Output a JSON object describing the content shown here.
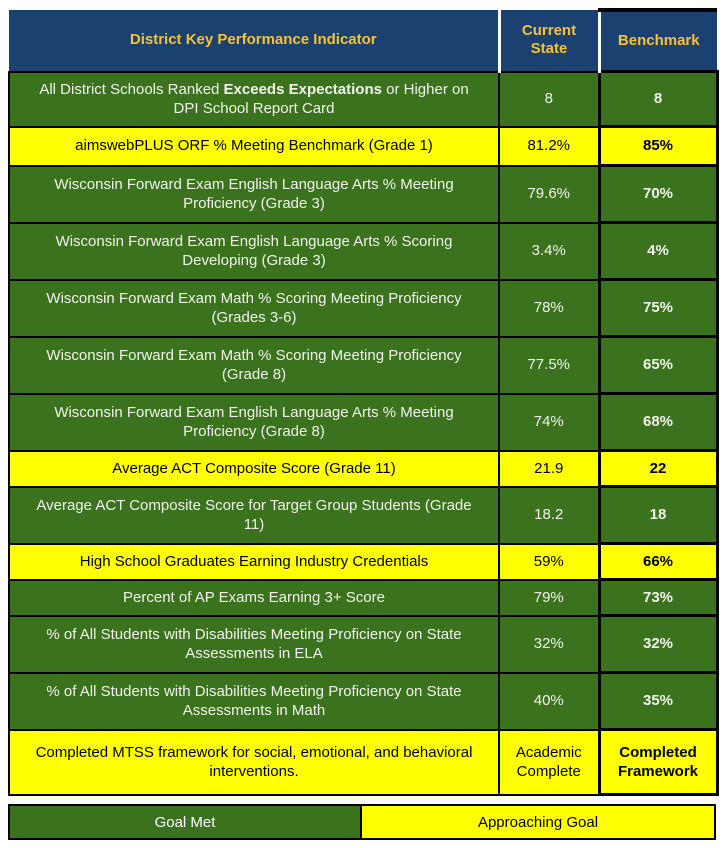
{
  "colors": {
    "header_bg": "#1b4171",
    "header_text": "#f6c235",
    "goal_met_green": "#3a721e",
    "approaching_yellow": "#ffff00",
    "border_black": "#000000",
    "green_row_text": "#f2f5ec"
  },
  "chart_data": {
    "type": "table",
    "title": "District Key Performance Indicator",
    "columns": [
      "District Key Performance Indicator",
      "Current State",
      "Benchmark"
    ],
    "rows": [
      {
        "indicator_prefix": "All District Schools Ranked ",
        "indicator_bold": "Exceeds Expectations",
        "indicator_suffix": " or Higher on DPI School Report Card",
        "current": "8",
        "benchmark": "8",
        "status": "goal_met"
      },
      {
        "indicator": "aimswebPLUS ORF % Meeting Benchmark (Grade 1)",
        "current": "81.2%",
        "benchmark": "85%",
        "status": "approaching_goal"
      },
      {
        "indicator": "Wisconsin Forward Exam English Language Arts % Meeting Proficiency (Grade 3)",
        "current": "79.6%",
        "benchmark": "70%",
        "status": "goal_met"
      },
      {
        "indicator": "Wisconsin Forward Exam English Language Arts % Scoring Developing (Grade 3)",
        "current": "3.4%",
        "benchmark": "4%",
        "status": "goal_met"
      },
      {
        "indicator": "Wisconsin Forward Exam Math % Scoring Meeting Proficiency (Grades 3-6)",
        "current": "78%",
        "benchmark": "75%",
        "status": "goal_met"
      },
      {
        "indicator": "Wisconsin Forward Exam Math % Scoring Meeting Proficiency (Grade 8)",
        "current": "77.5%",
        "benchmark": "65%",
        "status": "goal_met"
      },
      {
        "indicator": "Wisconsin Forward Exam English Language Arts % Meeting Proficiency (Grade 8)",
        "current": "74%",
        "benchmark": "68%",
        "status": "goal_met"
      },
      {
        "indicator": "Average ACT Composite Score (Grade 11)",
        "current": "21.9",
        "benchmark": "22",
        "status": "approaching_goal"
      },
      {
        "indicator": "Average ACT Composite Score for Target Group Students (Grade 11)",
        "current": "18.2",
        "benchmark": "18",
        "status": "goal_met"
      },
      {
        "indicator": "High School Graduates Earning Industry Credentials",
        "current": "59%",
        "benchmark": "66%",
        "status": "approaching_goal"
      },
      {
        "indicator": "Percent of AP Exams Earning 3+ Score",
        "current": "79%",
        "benchmark": "73%",
        "status": "goal_met"
      },
      {
        "indicator": "% of All Students with Disabilities Meeting Proficiency on State Assessments in ELA",
        "current": "32%",
        "benchmark": "32%",
        "status": "goal_met"
      },
      {
        "indicator": "% of All Students with Disabilities Meeting Proficiency on State Assessments in Math",
        "current": "40%",
        "benchmark": "35%",
        "status": "goal_met"
      },
      {
        "indicator": "Completed MTSS framework for social, emotional, and behavioral interventions.",
        "current": "Academic Complete",
        "benchmark": "Completed Framework",
        "status": "approaching_goal"
      }
    ],
    "legend": [
      {
        "label": "Goal Met",
        "color": "#3a721e"
      },
      {
        "label": "Approaching Goal",
        "color": "#ffff00"
      }
    ]
  }
}
